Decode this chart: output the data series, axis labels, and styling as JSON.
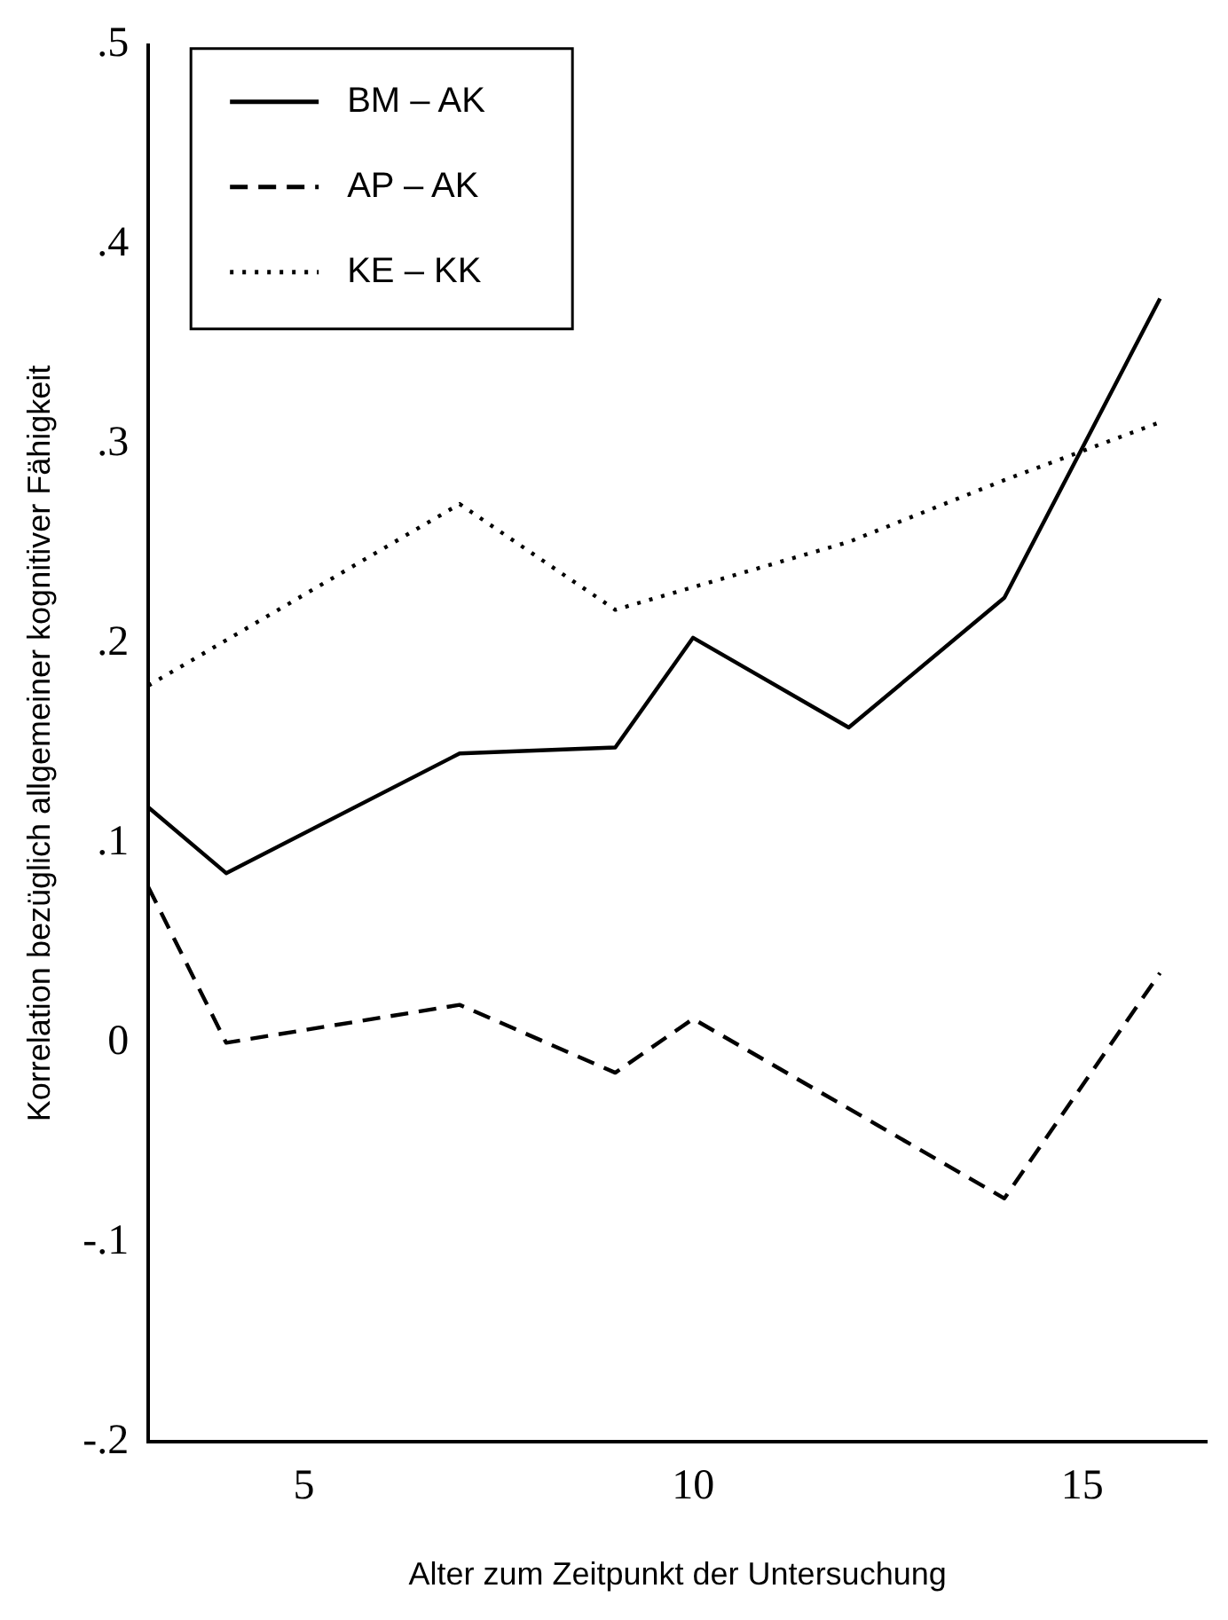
{
  "chart_data": {
    "type": "line",
    "xlabel": "Alter zum Zeitpunkt der Untersuchung",
    "ylabel": "Korrelation bezüglich allgemeiner kognitiver Fähigkeit",
    "xlim": [
      3,
      16.6
    ],
    "xticks": [
      5,
      10,
      15
    ],
    "ylim": [
      -0.2,
      0.5
    ],
    "yticks": [
      {
        "value": -0.2,
        "label": "-.2"
      },
      {
        "value": -0.1,
        "label": "-.1"
      },
      0,
      {
        "value": 0.1,
        "label": ".1"
      },
      {
        "value": 0.2,
        "label": ".2"
      },
      {
        "value": 0.3,
        "label": ".3"
      },
      {
        "value": 0.4,
        "label": ".4"
      },
      {
        "value": 0.5,
        "label": ".5"
      }
    ],
    "grid": false,
    "legend": "top left",
    "marker": "none",
    "series": [
      {
        "name": "BM – AK",
        "color": "#000000",
        "line_style": "solid",
        "x": [
          3,
          4,
          7,
          9,
          10,
          12,
          14,
          16
        ],
        "values": [
          0.118,
          0.085,
          0.145,
          0.148,
          0.203,
          0.158,
          0.223,
          0.373
        ]
      },
      {
        "name": "AP – AK",
        "color": "#000000",
        "line_style": "dashed",
        "x": [
          3,
          4,
          7,
          9,
          10,
          14,
          16
        ],
        "values": [
          0.078,
          0,
          0.019,
          -0.015,
          0.012,
          -0.078,
          0.035
        ]
      },
      {
        "name": "KE – KK",
        "color": "#000000",
        "line_style": "dotted",
        "x": [
          3,
          7,
          9,
          12,
          14,
          16
        ],
        "values": [
          0.179,
          0.27,
          0.217,
          0.251,
          0.282,
          0.311
        ]
      }
    ]
  }
}
